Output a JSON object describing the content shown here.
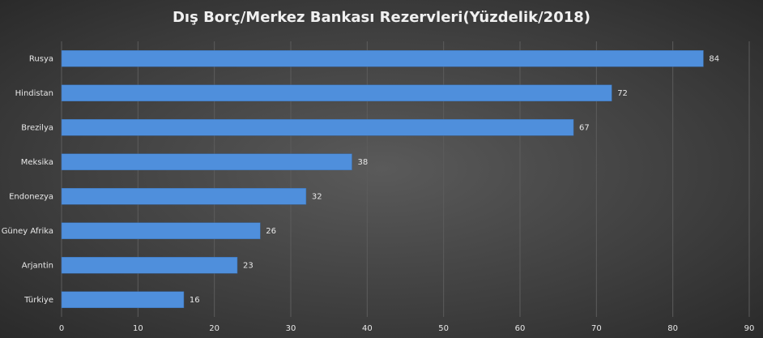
{
  "chart_data": {
    "type": "bar",
    "orientation": "horizontal",
    "title": "Dış Borç/Merkez Bankası Rezervleri(Yüzdelik/2018)",
    "categories": [
      "Rusya",
      "Hindistan",
      "Brezilya",
      "Meksika",
      "Endonezya",
      "Güney Afrika",
      "Arjantin",
      "Türkiye"
    ],
    "values": [
      84,
      72,
      67,
      38,
      32,
      26,
      23,
      16
    ],
    "color": "#4f8fdc",
    "xlim": [
      0,
      90
    ],
    "xticks": [
      0,
      10,
      20,
      30,
      40,
      50,
      60,
      70,
      80,
      90
    ],
    "grid": true
  }
}
